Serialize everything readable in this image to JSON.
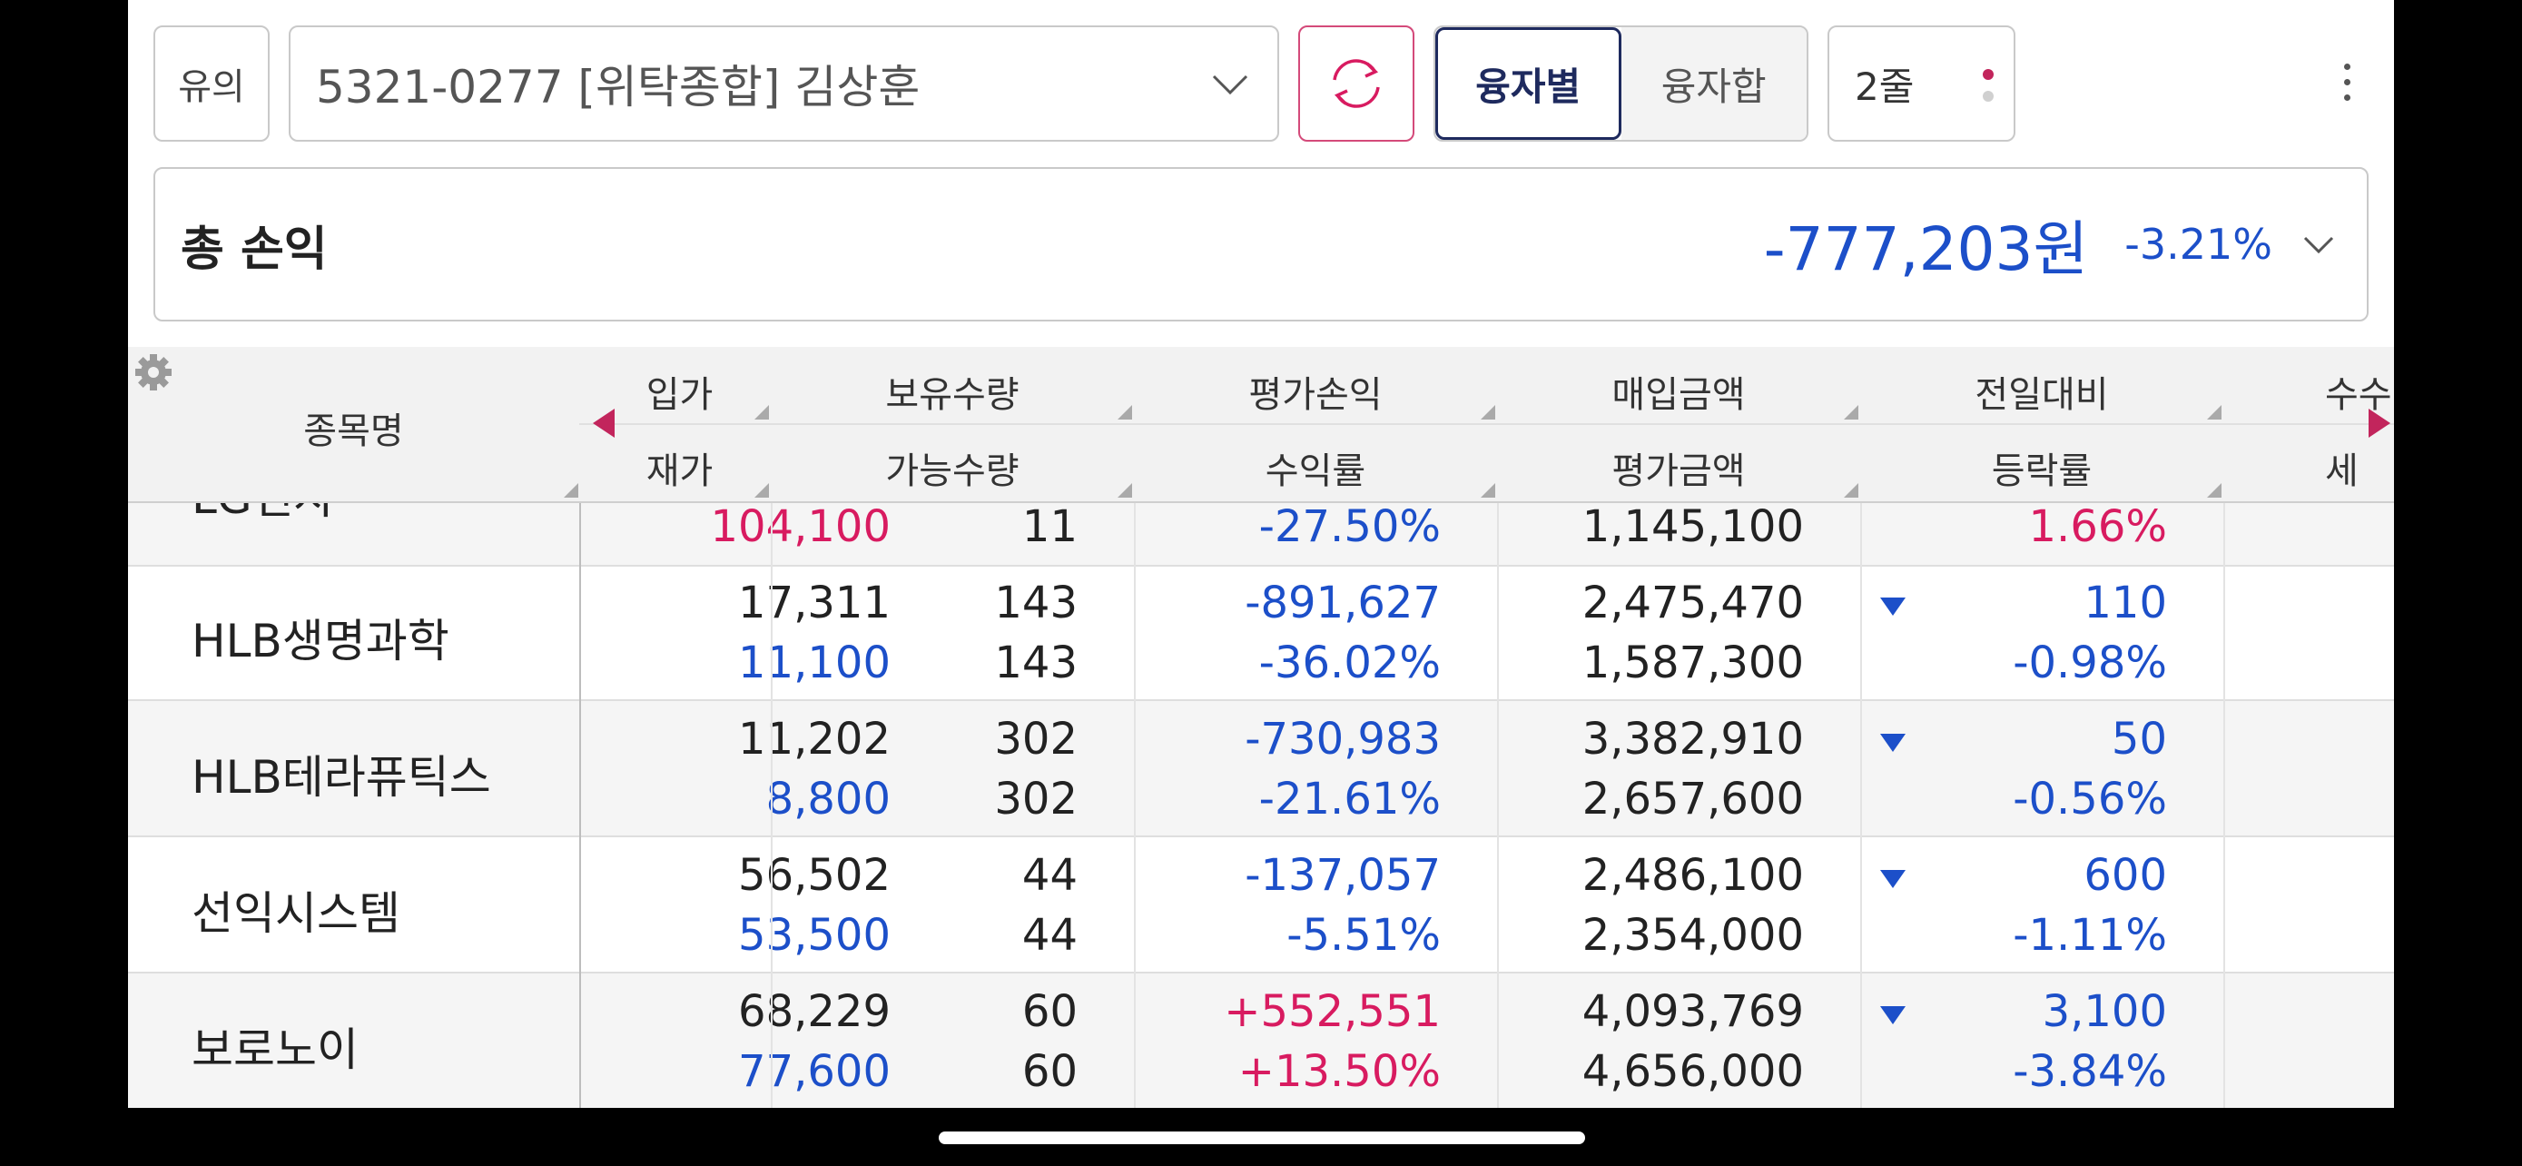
{
  "toolbar": {
    "warn_label": "유의",
    "account": "5321-0277 [위탁종합] 김상훈",
    "seg_active": "융자별",
    "seg_inactive": "융자합",
    "lines_label": "2줄"
  },
  "summary": {
    "label": "총 손익",
    "amount": "-777,203원",
    "rate": "-3.21%"
  },
  "colors": {
    "loss": "#1c4fc9",
    "gain": "#d81b60",
    "accent": "#1e2a5e"
  },
  "headers": {
    "name": "종목명",
    "c1_top": "입가",
    "c1_bot": "재가",
    "c2_top": "보유수량",
    "c2_bot": "가능수량",
    "c3_top": "평가손익",
    "c3_bot": "수익률",
    "c4_top": "매입금액",
    "c4_bot": "평가금액",
    "c5_top": "전일대비",
    "c5_bot": "등락률",
    "c6_top": "수수",
    "c6_bot": "세"
  },
  "rows": [
    {
      "name": "LG전자",
      "buy_price": "",
      "cur_price": "104,100",
      "qty": "",
      "avail_qty": "11",
      "pl": "",
      "pl_rate": "-27.50%",
      "buy_amt": "",
      "eval_amt": "1,145,100",
      "change": "",
      "change_rate": "1.66%"
    },
    {
      "name": "HLB생명과학",
      "buy_price": "17,311",
      "cur_price": "11,100",
      "qty": "143",
      "avail_qty": "143",
      "pl": "-891,627",
      "pl_rate": "-36.02%",
      "buy_amt": "2,475,470",
      "eval_amt": "1,587,300",
      "change": "110",
      "change_rate": "-0.98%"
    },
    {
      "name": "HLB테라퓨틱스",
      "buy_price": "11,202",
      "cur_price": "8,800",
      "qty": "302",
      "avail_qty": "302",
      "pl": "-730,983",
      "pl_rate": "-21.61%",
      "buy_amt": "3,382,910",
      "eval_amt": "2,657,600",
      "change": "50",
      "change_rate": "-0.56%"
    },
    {
      "name": "선익시스템",
      "buy_price": "56,502",
      "cur_price": "53,500",
      "qty": "44",
      "avail_qty": "44",
      "pl": "-137,057",
      "pl_rate": "-5.51%",
      "buy_amt": "2,486,100",
      "eval_amt": "2,354,000",
      "change": "600",
      "change_rate": "-1.11%"
    },
    {
      "name": "보로노이",
      "buy_price": "68,229",
      "cur_price": "77,600",
      "qty": "60",
      "avail_qty": "60",
      "pl": "+552,551",
      "pl_rate": "+13.50%",
      "buy_amt": "4,093,769",
      "eval_amt": "4,656,000",
      "change": "3,100",
      "change_rate": "-3.84%"
    }
  ]
}
